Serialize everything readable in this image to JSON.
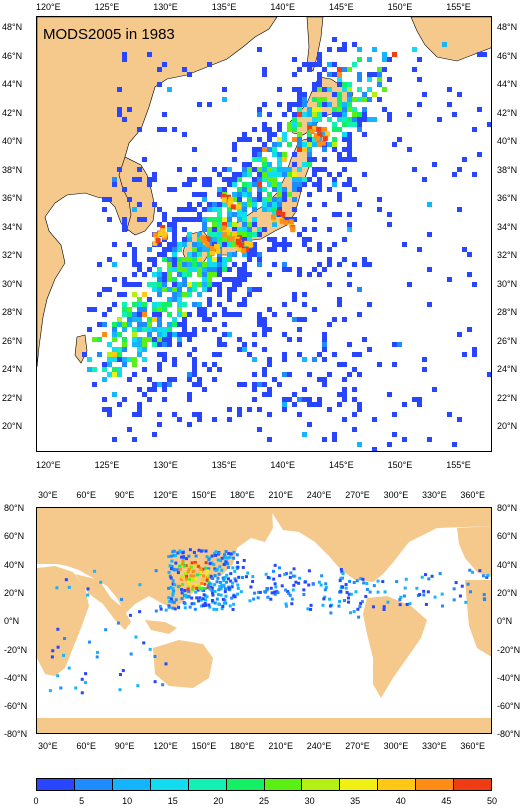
{
  "colors": {
    "land": "#f5c88c",
    "ocean": "#ffffff",
    "colorbar": [
      "#2846ff",
      "#1e8cff",
      "#14b4ff",
      "#14dcf0",
      "#14f0b4",
      "#14f064",
      "#5af014",
      "#b4f014",
      "#f0f014",
      "#ffc814",
      "#ff8c14",
      "#f03c14"
    ]
  },
  "top_map": {
    "title": "MODS2005 in 1983",
    "lon_labels": [
      "120°E",
      "125°E",
      "130°E",
      "135°E",
      "140°E",
      "145°E",
      "150°E",
      "155°E"
    ],
    "lat_labels": [
      "48°N",
      "46°N",
      "44°N",
      "42°N",
      "40°N",
      "38°N",
      "36°N",
      "34°N",
      "32°N",
      "30°N",
      "28°N",
      "26°N",
      "24°N",
      "22°N",
      "20°N"
    ],
    "lon_range": [
      119,
      157.5
    ],
    "lat_range": [
      18.5,
      49.2
    ]
  },
  "bottom_map": {
    "lon_labels": [
      "30°E",
      "60°E",
      "90°E",
      "120°E",
      "150°E",
      "180°E",
      "210°E",
      "240°E",
      "270°E",
      "300°E",
      "330°E",
      "360°E"
    ],
    "lat_labels": [
      "80°N",
      "60°N",
      "40°N",
      "20°N",
      "0°N",
      "-20°N",
      "-40°N",
      "-60°N",
      "-80°N"
    ]
  },
  "colorbar": {
    "labels": [
      "0",
      "5",
      "10",
      "15",
      "20",
      "25",
      "30",
      "35",
      "40",
      "45",
      "50"
    ]
  }
}
